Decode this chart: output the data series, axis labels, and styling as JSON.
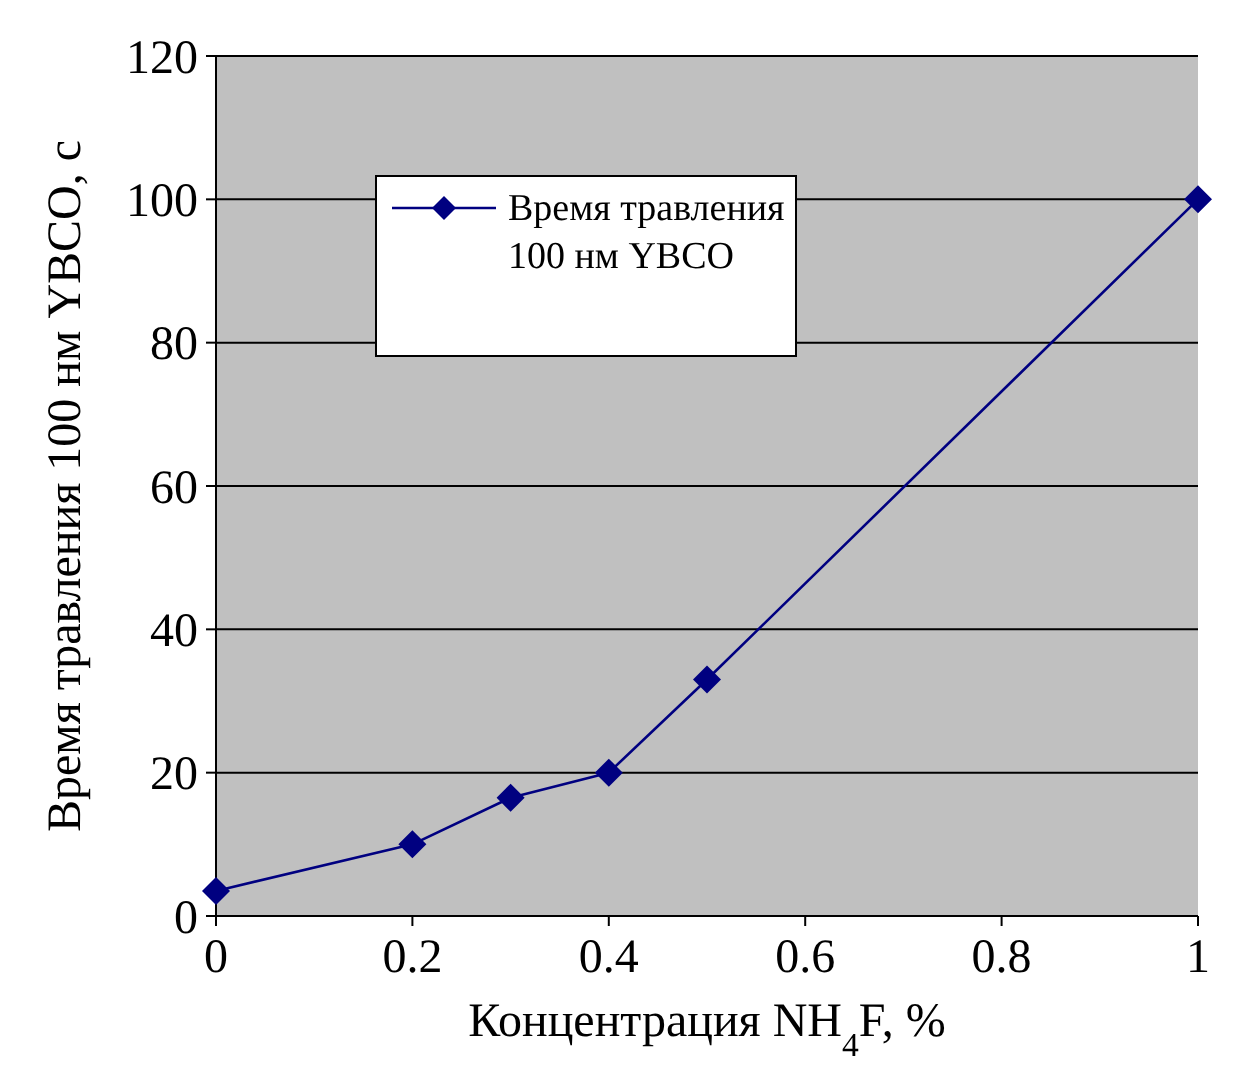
{
  "chart_data": {
    "type": "line",
    "xlabel": "Концентрация NH$_{4}$F, %",
    "ylabel": "Время травления 100 нм YBCO, с",
    "x": [
      0,
      0.2,
      0.3,
      0.4,
      0.5,
      1
    ],
    "series": [
      {
        "name": "Время травления 100 нм YBCO",
        "color": "#000080",
        "values": [
          3.5,
          10,
          16.5,
          20,
          33,
          100
        ]
      }
    ],
    "xlim": [
      0,
      1
    ],
    "xticks": [
      0,
      0.2,
      0.4,
      0.6,
      0.8,
      1
    ],
    "ylim": [
      0,
      120
    ],
    "yticks": [
      0,
      20,
      40,
      60,
      80,
      100,
      120
    ],
    "grid": "y",
    "legend": "top left",
    "marker": "diamond",
    "line_style": "solid"
  }
}
